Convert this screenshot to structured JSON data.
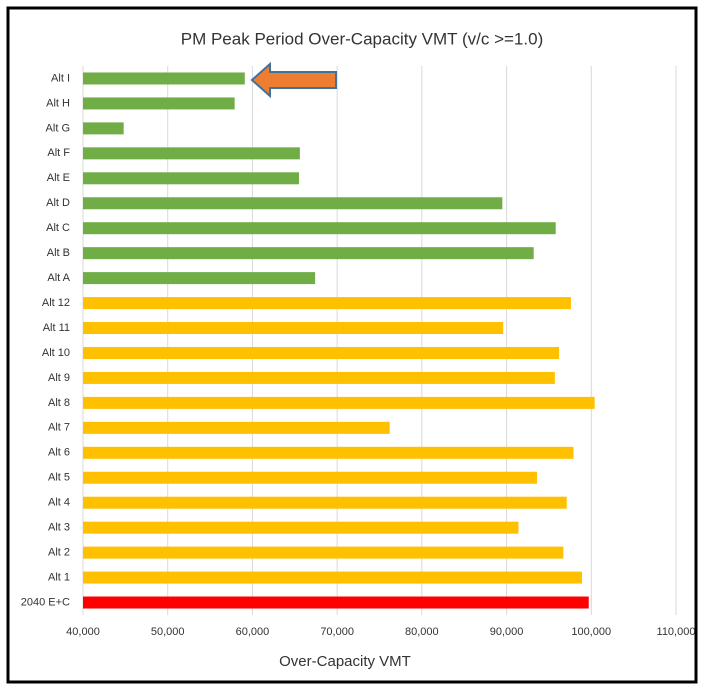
{
  "chart_data": {
    "type": "hbar",
    "title": "PM Peak Period Over-Capacity VMT (v/c >=1.0)",
    "x_label": "Over-Capacity VMT",
    "categories": [
      "Alt I",
      "Alt H",
      "Alt G",
      "Alt F",
      "Alt E",
      "Alt D",
      "Alt C",
      "Alt B",
      "Alt A",
      "Alt 12",
      "Alt 11",
      "Alt 10",
      "Alt 9",
      "Alt 8",
      "Alt 7",
      "Alt 6",
      "Alt 5",
      "Alt 4",
      "Alt 3",
      "Alt 2",
      "Alt 1",
      "2040 E+C"
    ],
    "values": [
      59100,
      57900,
      44800,
      65600,
      65500,
      89500,
      95800,
      93200,
      67400,
      97600,
      89600,
      96200,
      95700,
      100400,
      76200,
      97900,
      93600,
      97100,
      91400,
      96700,
      98900,
      99700
    ],
    "colors": [
      "#70ad47",
      "#70ad47",
      "#70ad47",
      "#70ad47",
      "#70ad47",
      "#70ad47",
      "#70ad47",
      "#70ad47",
      "#70ad47",
      "#ffc000",
      "#ffc000",
      "#ffc000",
      "#ffc000",
      "#ffc000",
      "#ffc000",
      "#ffc000",
      "#ffc000",
      "#ffc000",
      "#ffc000",
      "#ffc000",
      "#ffc000",
      "#ff0000"
    ],
    "xlim": [
      40000,
      110000
    ],
    "xticks": [
      {
        "value": 40000,
        "label": "40,000"
      },
      {
        "value": 50000,
        "label": "50,000"
      },
      {
        "value": 60000,
        "label": "60,000"
      },
      {
        "value": 70000,
        "label": "70,000"
      },
      {
        "value": 80000,
        "label": "80,000"
      },
      {
        "value": 90000,
        "label": "90,000"
      },
      {
        "value": 100000,
        "label": "100,000"
      },
      {
        "value": 110000,
        "label": "110,000"
      }
    ],
    "grid": true
  }
}
